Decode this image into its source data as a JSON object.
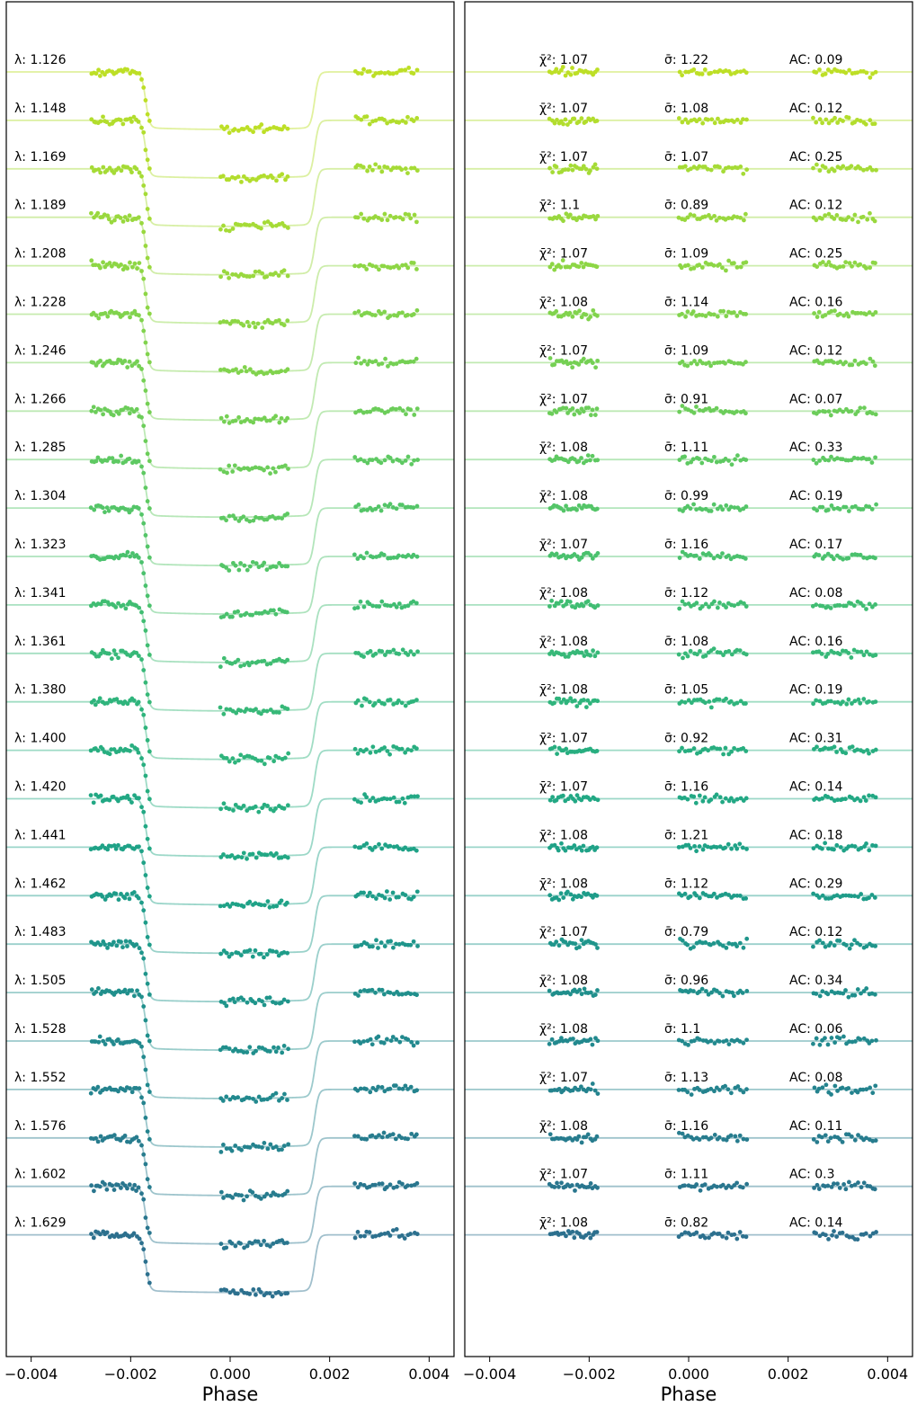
{
  "chart_data": {
    "type": "scatter",
    "title": "",
    "panels": [
      {
        "name": "light-curves",
        "xlabel": "Phase",
        "xlim": [
          -0.0045,
          0.0045
        ],
        "xticks": [
          -0.004,
          -0.002,
          0.0,
          0.002,
          0.004
        ],
        "xtick_labels": [
          "−0.004",
          "−0.002",
          "0.000",
          "0.002",
          "0.004"
        ]
      },
      {
        "name": "residuals",
        "xlabel": "Phase",
        "xlim": [
          -0.0045,
          0.0045
        ],
        "xticks": [
          -0.004,
          -0.002,
          0.0,
          0.002,
          0.004
        ],
        "xtick_labels": [
          "−0.004",
          "−0.002",
          "0.000",
          "0.002",
          "0.004"
        ]
      }
    ],
    "transit": {
      "ingress_phase": -0.0017,
      "egress_phase": 0.0017,
      "edge_width": 0.0001,
      "depth_offsets": 64,
      "phase_segments": [
        [
          -0.0028,
          -0.0018
        ],
        [
          -0.0002,
          0.0012
        ],
        [
          0.0025,
          0.0038
        ]
      ]
    },
    "stat_labels": {
      "chi": "χ̄²: ",
      "sigma": "σ̄: ",
      "ac": "AC: ",
      "lambda": "λ: "
    },
    "channels": [
      {
        "wavelength": "1.126",
        "chi2": "1.07",
        "sigma": "1.22",
        "ac": "0.09",
        "color": "#bddf26"
      },
      {
        "wavelength": "1.148",
        "chi2": "1.07",
        "sigma": "1.08",
        "ac": "0.12",
        "color": "#b2dd2d"
      },
      {
        "wavelength": "1.169",
        "chi2": "1.07",
        "sigma": "1.07",
        "ac": "0.25",
        "color": "#a5db36"
      },
      {
        "wavelength": "1.189",
        "chi2": "1.1",
        "sigma": "0.89",
        "ac": "0.12",
        "color": "#99d83e"
      },
      {
        "wavelength": "1.208",
        "chi2": "1.07",
        "sigma": "1.09",
        "ac": "0.25",
        "color": "#8dd645"
      },
      {
        "wavelength": "1.228",
        "chi2": "1.08",
        "sigma": "1.14",
        "ac": "0.16",
        "color": "#81d34d"
      },
      {
        "wavelength": "1.246",
        "chi2": "1.07",
        "sigma": "1.09",
        "ac": "0.12",
        "color": "#75d054"
      },
      {
        "wavelength": "1.266",
        "chi2": "1.07",
        "sigma": "0.91",
        "ac": "0.07",
        "color": "#6ccd5a"
      },
      {
        "wavelength": "1.285",
        "chi2": "1.08",
        "sigma": "1.11",
        "ac": "0.33",
        "color": "#5ec962"
      },
      {
        "wavelength": "1.304",
        "chi2": "1.08",
        "sigma": "0.99",
        "ac": "0.19",
        "color": "#54c568"
      },
      {
        "wavelength": "1.323",
        "chi2": "1.07",
        "sigma": "1.16",
        "ac": "0.17",
        "color": "#4ac16d"
      },
      {
        "wavelength": "1.341",
        "chi2": "1.08",
        "sigma": "1.12",
        "ac": "0.08",
        "color": "#40bd72"
      },
      {
        "wavelength": "1.361",
        "chi2": "1.08",
        "sigma": "1.08",
        "ac": "0.16",
        "color": "#37b878"
      },
      {
        "wavelength": "1.380",
        "chi2": "1.08",
        "sigma": "1.05",
        "ac": "0.19",
        "color": "#2fb47c"
      },
      {
        "wavelength": "1.400",
        "chi2": "1.07",
        "sigma": "0.92",
        "ac": "0.31",
        "color": "#28ae80"
      },
      {
        "wavelength": "1.420",
        "chi2": "1.07",
        "sigma": "1.16",
        "ac": "0.14",
        "color": "#22a884"
      },
      {
        "wavelength": "1.441",
        "chi2": "1.08",
        "sigma": "1.21",
        "ac": "0.18",
        "color": "#1fa287"
      },
      {
        "wavelength": "1.462",
        "chi2": "1.08",
        "sigma": "1.12",
        "ac": "0.29",
        "color": "#1e9c89"
      },
      {
        "wavelength": "1.483",
        "chi2": "1.07",
        "sigma": "0.79",
        "ac": "0.12",
        "color": "#1f958b"
      },
      {
        "wavelength": "1.505",
        "chi2": "1.08",
        "sigma": "0.96",
        "ac": "0.34",
        "color": "#208f8c"
      },
      {
        "wavelength": "1.528",
        "chi2": "1.08",
        "sigma": "1.1",
        "ac": "0.06",
        "color": "#22898e"
      },
      {
        "wavelength": "1.552",
        "chi2": "1.07",
        "sigma": "1.13",
        "ac": "0.08",
        "color": "#24838e"
      },
      {
        "wavelength": "1.576",
        "chi2": "1.08",
        "sigma": "1.16",
        "ac": "0.11",
        "color": "#277c8e"
      },
      {
        "wavelength": "1.602",
        "chi2": "1.07",
        "sigma": "1.11",
        "ac": "0.3",
        "color": "#29768e"
      },
      {
        "wavelength": "1.629",
        "chi2": "1.08",
        "sigma": "0.82",
        "ac": "0.14",
        "color": "#2c708e"
      }
    ]
  }
}
